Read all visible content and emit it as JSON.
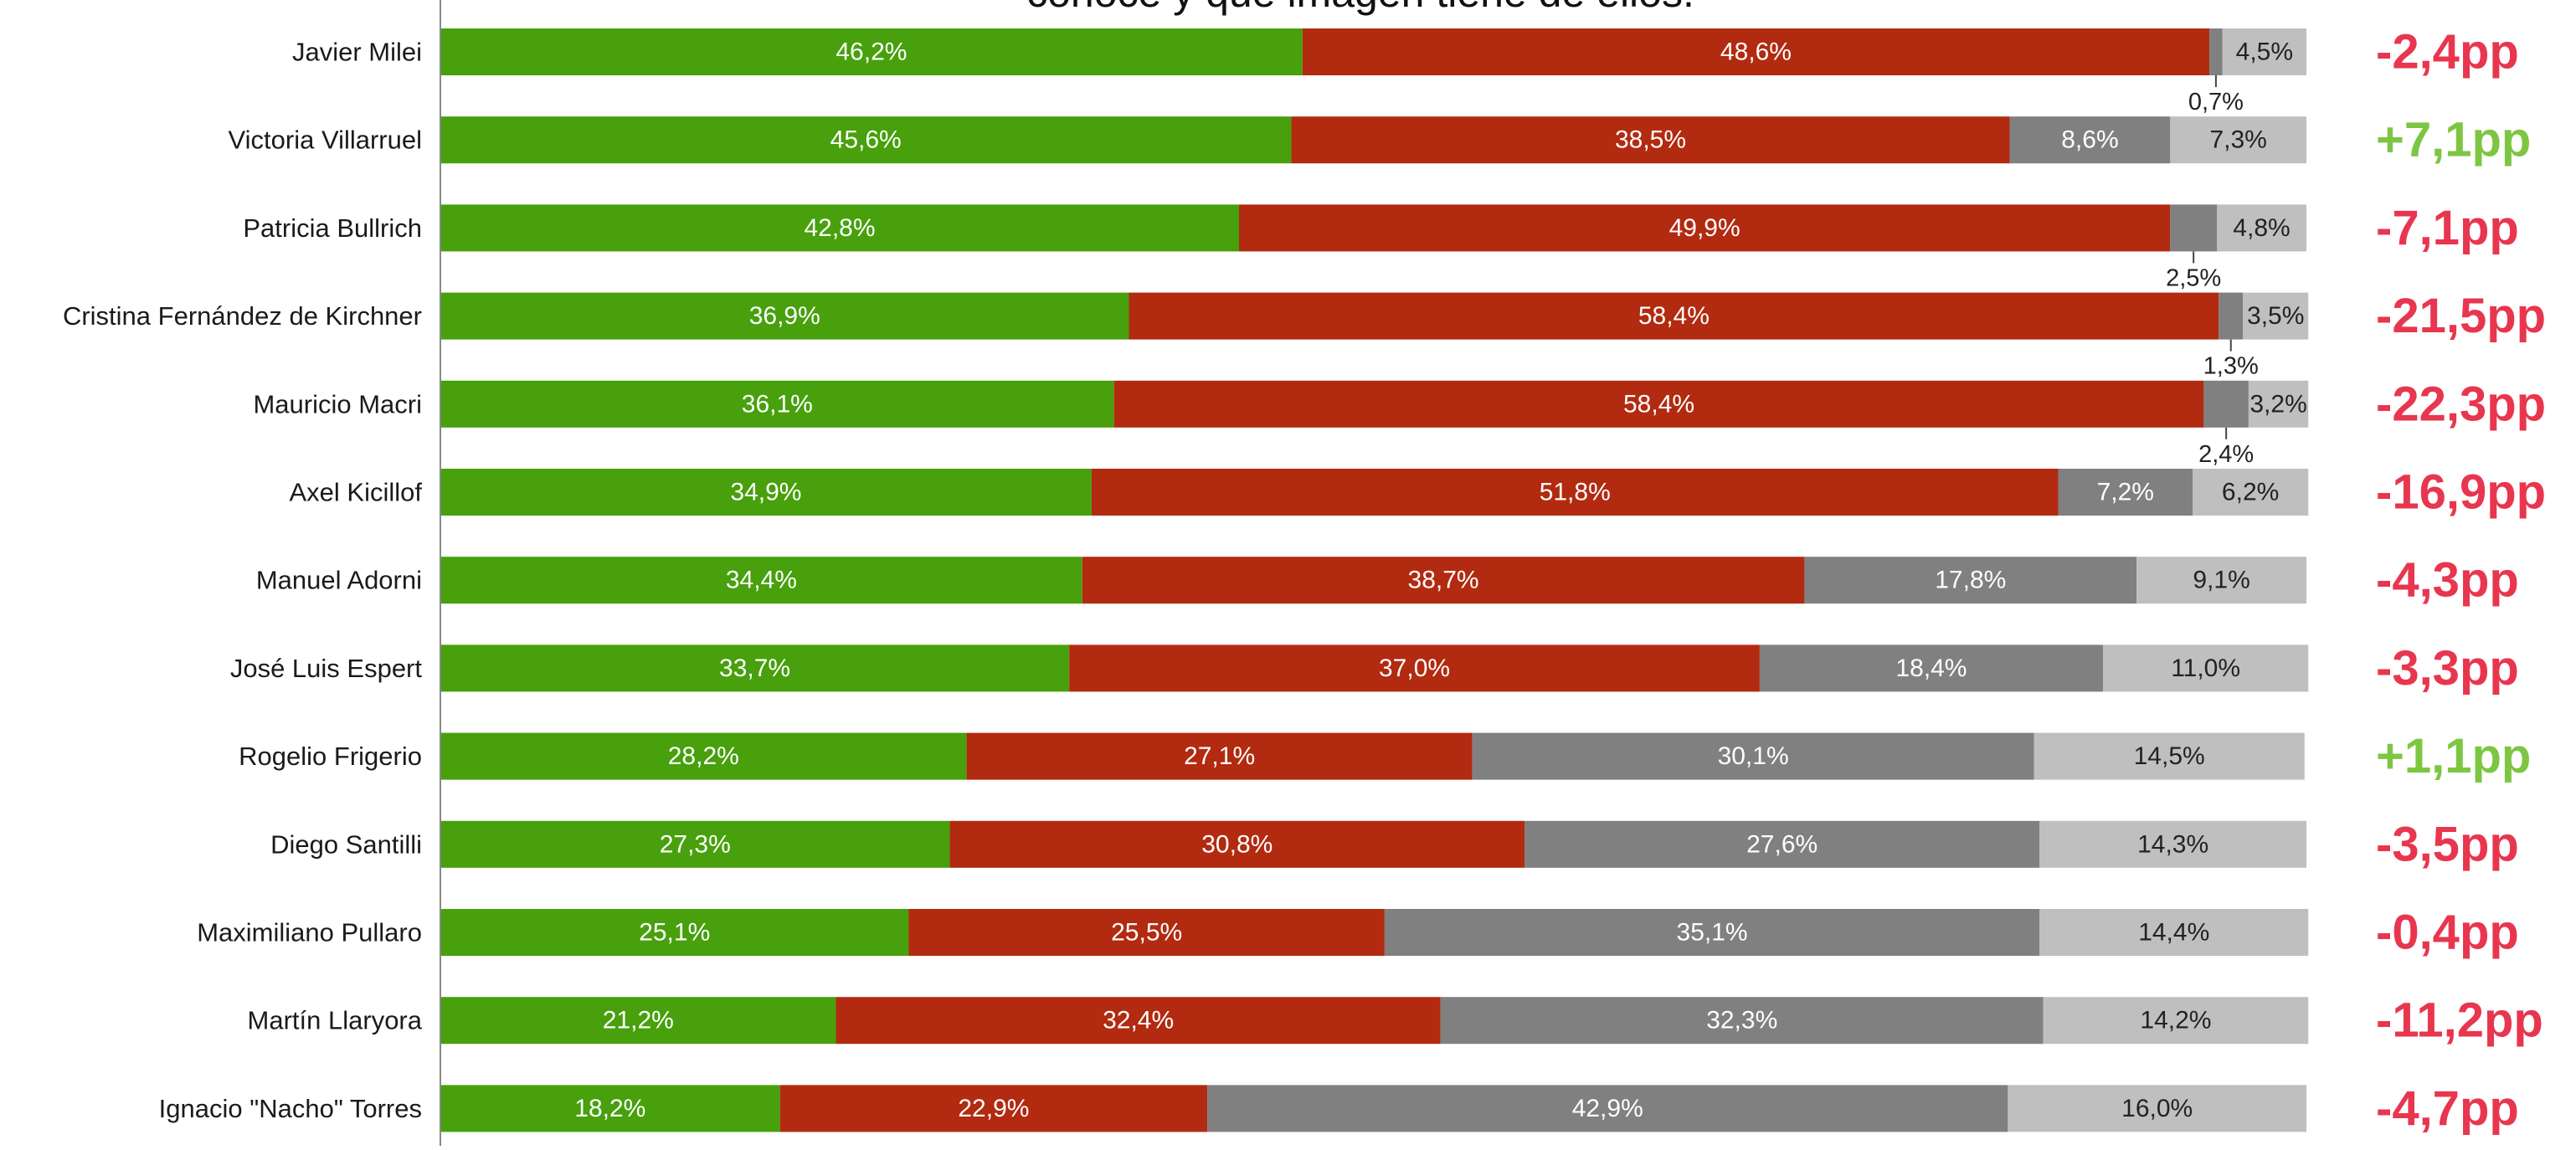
{
  "chart_data": {
    "type": "bar",
    "orientation": "horizontal",
    "stacked": true,
    "title": "conoce y qué imagen tiene de ellos.",
    "xlim": [
      0,
      100
    ],
    "grid": false,
    "legend": "none",
    "categories": [
      "Javier Milei",
      "Victoria Villarruel",
      "Patricia Bullrich",
      "Cristina Fernández de Kirchner",
      "Mauricio Macri",
      "Axel Kicillof",
      "Manuel Adorni",
      "José Luis Espert",
      "Rogelio Frigerio",
      "Diego Santilli",
      "Maximiliano Pullaro",
      "Martín Llaryora",
      "Ignacio \"Nacho\" Torres"
    ],
    "series": [
      {
        "color": "#47a00c",
        "values": [
          46.2,
          45.6,
          42.8,
          36.9,
          36.1,
          34.9,
          34.4,
          33.7,
          28.2,
          27.3,
          25.1,
          21.2,
          18.2
        ],
        "labels": [
          "46,2%",
          "45,6%",
          "42,8%",
          "36,9%",
          "36,1%",
          "34,9%",
          "34,4%",
          "33,7%",
          "28,2%",
          "27,3%",
          "25,1%",
          "21,2%",
          "18,2%"
        ]
      },
      {
        "color": "#b22a10",
        "values": [
          48.6,
          38.5,
          49.9,
          58.4,
          58.4,
          51.8,
          38.7,
          37.0,
          27.1,
          30.8,
          25.5,
          32.4,
          22.9
        ],
        "labels": [
          "48,6%",
          "38,5%",
          "49,9%",
          "58,4%",
          "58,4%",
          "51,8%",
          "38,7%",
          "37,0%",
          "27,1%",
          "30,8%",
          "25,5%",
          "32,4%",
          "22,9%"
        ]
      },
      {
        "color": "#808080",
        "values": [
          0.7,
          8.6,
          2.5,
          1.3,
          2.4,
          7.2,
          17.8,
          18.4,
          30.1,
          27.6,
          35.1,
          32.3,
          42.9
        ],
        "labels": [
          "0,7%",
          "8,6%",
          "2,5%",
          "1,3%",
          "2,4%",
          "7,2%",
          "17,8%",
          "18,4%",
          "30,1%",
          "27,6%",
          "35,1%",
          "32,3%",
          "42,9%"
        ]
      },
      {
        "color": "#bfbfbf",
        "values": [
          4.5,
          7.3,
          4.8,
          3.5,
          3.2,
          6.2,
          9.1,
          11.0,
          14.5,
          14.3,
          14.4,
          14.2,
          16.0
        ],
        "labels": [
          "4,5%",
          "7,3%",
          "4,8%",
          "3,5%",
          "3,2%",
          "6,2%",
          "9,1%",
          "11,0%",
          "14,5%",
          "14,3%",
          "14,4%",
          "14,2%",
          "16,0%"
        ]
      }
    ],
    "annotations": {
      "values": [
        -2.4,
        7.1,
        -7.1,
        -21.5,
        -22.3,
        -16.9,
        -4.3,
        -3.3,
        1.1,
        -3.5,
        -0.4,
        -11.2,
        -4.7
      ],
      "labels": [
        "-2,4pp",
        "+7,1pp",
        "-7,1pp",
        "-21,5pp",
        "-22,3pp",
        "-16,9pp",
        "-4,3pp",
        "-3,3pp",
        "+1,1pp",
        "-3,5pp",
        "-0,4pp",
        "-11,2pp",
        "-4,7pp"
      ],
      "positive_color": "#7dc642",
      "negative_color": "#e8364f"
    }
  }
}
